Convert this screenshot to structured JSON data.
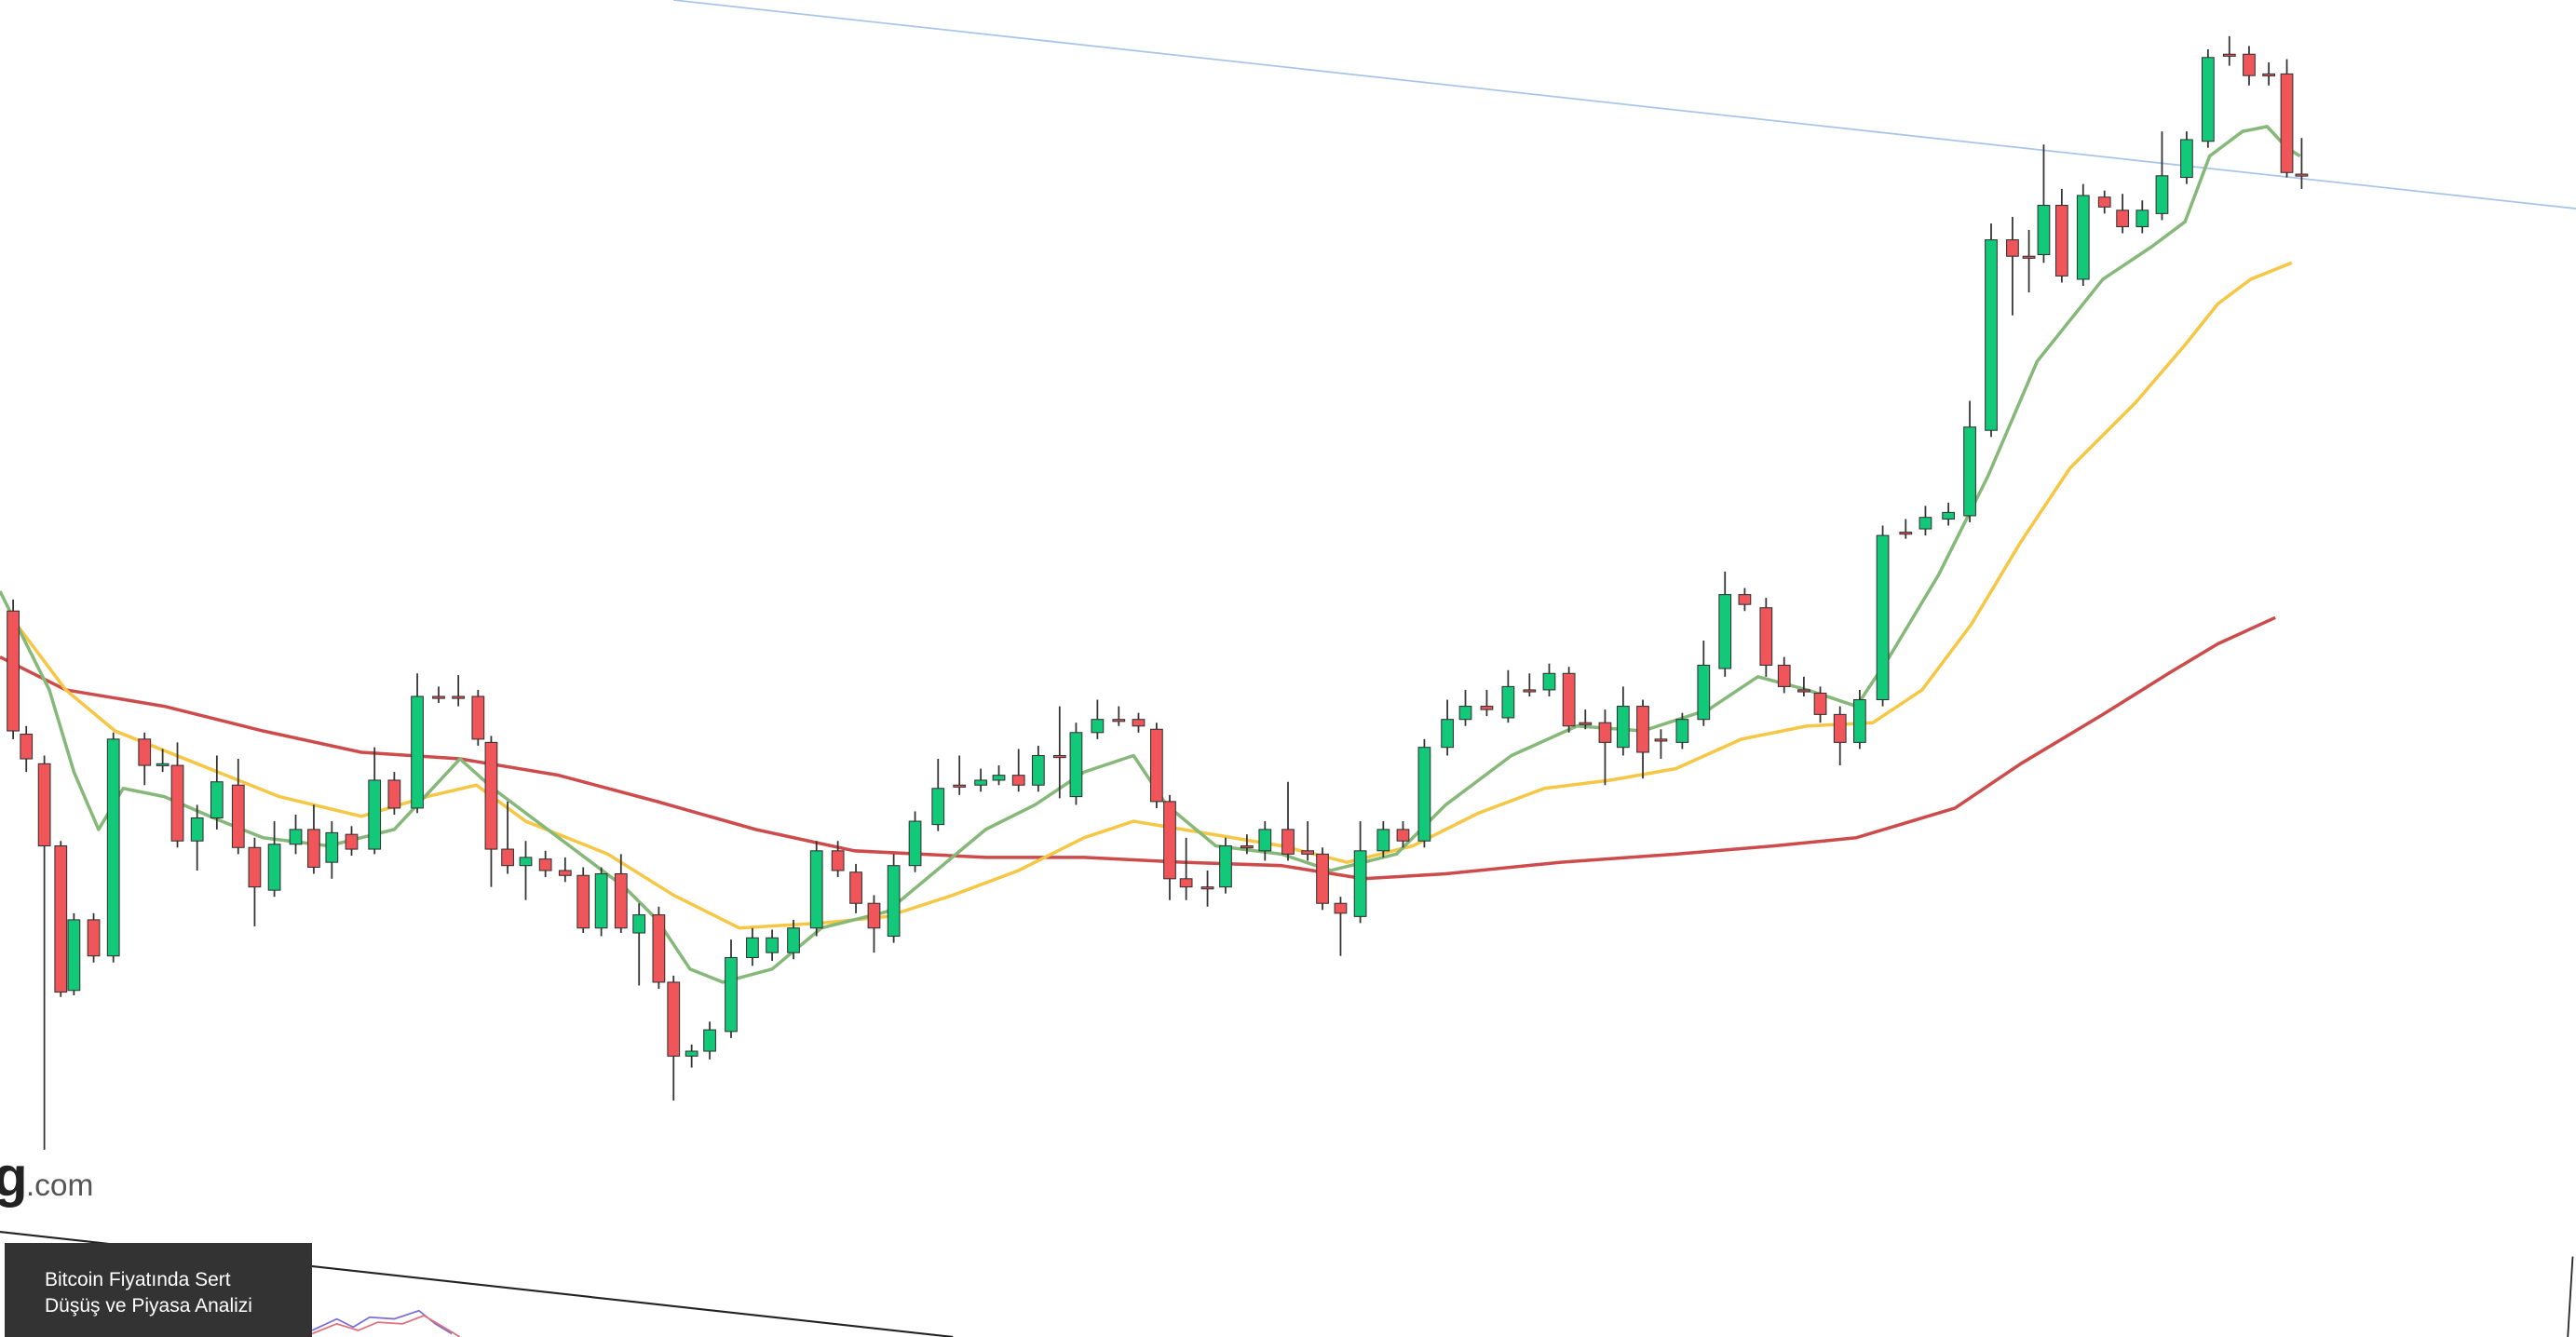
{
  "chart_data": {
    "type": "candlestick",
    "xlim": [
      0,
      1568
    ],
    "ylim": [
      0,
      814
    ],
    "up_color": "#12c97a",
    "down_color": "#f0555a",
    "x": [
      8,
      16,
      27,
      37,
      45,
      57,
      69,
      88,
      99,
      108,
      120,
      132,
      145,
      155,
      167,
      180,
      191,
      202,
      214,
      228,
      240,
      254,
      267,
      279,
      291,
      299,
      309,
      320,
      332,
      344,
      355,
      366,
      378,
      389,
      401,
      410,
      421,
      432,
      445,
      458,
      470,
      483,
      497,
      510,
      521,
      532,
      544,
      557,
      571,
      584,
      597,
      608,
      620,
      632,
      645,
      655,
      668,
      681,
      693,
      704,
      712,
      722,
      735,
      746,
      759,
      770,
      784,
      796,
      805,
      816,
      828,
      842,
      854,
      867,
      881,
      892,
      905,
      918,
      931,
      943,
      955,
      965,
      977,
      988,
      1000,
      1011,
      1024,
      1037,
      1050,
      1062,
      1075,
      1086,
      1098,
      1108,
      1120,
      1132,
      1146,
      1160,
      1172,
      1186,
      1199,
      1212,
      1225,
      1235,
      1244,
      1255,
      1268,
      1281,
      1292,
      1304,
      1316,
      1331,
      1344,
      1357,
      1369,
      1381,
      1392,
      1401
    ],
    "open": [
      442,
      367,
      349,
      299,
      211,
      254,
      232,
      364,
      348,
      348,
      302,
      316,
      336,
      298,
      272,
      300,
      309,
      289,
      306,
      297,
      339,
      322,
      390,
      390,
      390,
      362,
      297,
      287,
      291,
      284,
      281,
      249,
      282,
      246,
      257,
      216,
      171,
      174,
      186,
      231,
      234,
      234,
      249,
      296,
      283,
      264,
      244,
      287,
      312,
      336,
      336,
      339,
      342,
      336,
      354,
      329,
      368,
      376,
      376,
      370,
      326,
      279,
      274,
      274,
      299,
      296,
      309,
      296,
      294,
      264,
      256,
      296,
      309,
      302,
      359,
      376,
      384,
      377,
      394,
      394,
      404,
      374,
      374,
      359,
      384,
      364,
      362,
      376,
      407,
      452,
      444,
      409,
      394,
      392,
      379,
      362,
      388,
      490,
      492,
      498,
      500,
      552,
      668,
      658,
      659,
      689,
      644,
      694,
      686,
      676,
      684,
      706,
      728,
      781,
      781,
      769,
      769,
      708
    ],
    "high": [
      449,
      372,
      354,
      302,
      258,
      258,
      368,
      368,
      358,
      362,
      324,
      354,
      352,
      304,
      314,
      318,
      324,
      314,
      311,
      359,
      344,
      404,
      396,
      403,
      394,
      366,
      326,
      302,
      296,
      292,
      286,
      286,
      294,
      264,
      262,
      220,
      178,
      192,
      242,
      249,
      248,
      254,
      302,
      302,
      288,
      269,
      294,
      320,
      352,
      354,
      346,
      348,
      358,
      360,
      384,
      374,
      388,
      384,
      380,
      374,
      330,
      304,
      284,
      304,
      306,
      314,
      338,
      314,
      298,
      268,
      314,
      314,
      314,
      364,
      388,
      394,
      394,
      406,
      404,
      410,
      408,
      382,
      382,
      396,
      388,
      370,
      380,
      424,
      466,
      456,
      450,
      414,
      402,
      396,
      384,
      394,
      494,
      498,
      506,
      508,
      570,
      678,
      682,
      674,
      726,
      699,
      702,
      698,
      696,
      692,
      734,
      734,
      784,
      792,
      786,
      776,
      778,
      730
    ],
    "low": [
      364,
      344,
      114,
      207,
      208,
      228,
      228,
      336,
      344,
      298,
      284,
      309,
      294,
      250,
      268,
      294,
      282,
      279,
      293,
      294,
      318,
      319,
      386,
      384,
      360,
      274,
      282,
      266,
      280,
      277,
      246,
      244,
      246,
      214,
      212,
      144,
      164,
      169,
      182,
      226,
      229,
      230,
      244,
      280,
      258,
      234,
      240,
      283,
      308,
      330,
      332,
      336,
      332,
      332,
      328,
      324,
      364,
      372,
      368,
      322,
      266,
      266,
      262,
      270,
      294,
      290,
      290,
      290,
      260,
      232,
      252,
      292,
      298,
      298,
      354,
      372,
      378,
      374,
      390,
      390,
      368,
      370,
      336,
      354,
      340,
      352,
      358,
      372,
      402,
      442,
      402,
      392,
      390,
      374,
      348,
      358,
      384,
      486,
      488,
      494,
      496,
      548,
      622,
      636,
      654,
      642,
      640,
      684,
      672,
      672,
      680,
      702,
      724,
      774,
      762,
      762,
      706,
      699
    ],
    "close": [
      369,
      352,
      299,
      210,
      254,
      232,
      364,
      348,
      349,
      302,
      316,
      338,
      298,
      274,
      300,
      309,
      286,
      307,
      297,
      339,
      322,
      390,
      389,
      389,
      364,
      297,
      287,
      292,
      284,
      281,
      249,
      282,
      249,
      257,
      216,
      171,
      174,
      187,
      231,
      243,
      243,
      249,
      296,
      284,
      264,
      249,
      287,
      314,
      334,
      335,
      339,
      342,
      336,
      354,
      353,
      368,
      376,
      375,
      372,
      326,
      279,
      274,
      273,
      299,
      298,
      309,
      294,
      294,
      264,
      258,
      296,
      309,
      302,
      359,
      376,
      384,
      382,
      396,
      393,
      404,
      372,
      373,
      362,
      384,
      356,
      363,
      376,
      409,
      452,
      446,
      409,
      396,
      393,
      379,
      362,
      388,
      488,
      489,
      499,
      502,
      554,
      668,
      658,
      657,
      689,
      646,
      695,
      688,
      676,
      686,
      707,
      729,
      779,
      780,
      768,
      768,
      709,
      707
    ],
    "lines": [
      {
        "color": "#86b87a",
        "x": [
          0,
          10,
          30,
          45,
          60,
          75,
          100,
          130,
          160,
          200,
          240,
          280,
          300,
          340,
          380,
          400,
          420,
          440,
          470,
          500,
          540,
          570,
          600,
          630,
          660,
          690,
          710,
          740,
          780,
          810,
          850,
          880,
          920,
          960,
          1000,
          1040,
          1070,
          1100,
          1130,
          1150,
          1180,
          1210,
          1240,
          1280,
          1310,
          1330,
          1345,
          1365,
          1380,
          1392,
          1400
        ],
        "values": [
          454,
          434,
          394,
          344,
          309,
          334,
          329,
          316,
          304,
          299,
          309,
          352,
          334,
          304,
          274,
          254,
          224,
          216,
          224,
          249,
          259,
          284,
          309,
          324,
          344,
          354,
          324,
          299,
          294,
          284,
          294,
          324,
          354,
          372,
          369,
          382,
          402,
          394,
          384,
          414,
          464,
          524,
          594,
          644,
          664,
          679,
          719,
          734,
          737,
          724,
          719
        ]
      },
      {
        "color": "#f6c744",
        "x": [
          10,
          40,
          70,
          120,
          170,
          220,
          260,
          290,
          320,
          370,
          410,
          450,
          500,
          540,
          580,
          620,
          660,
          690,
          720,
          780,
          820,
          860,
          900,
          940,
          980,
          1020,
          1060,
          1100,
          1140,
          1170,
          1200,
          1230,
          1260,
          1300,
          1330,
          1350,
          1370,
          1395
        ],
        "values": [
          434,
          394,
          369,
          349,
          329,
          317,
          329,
          336,
          314,
          294,
          269,
          249,
          252,
          256,
          269,
          284,
          304,
          314,
          309,
          299,
          289,
          299,
          319,
          334,
          339,
          346,
          364,
          372,
          374,
          394,
          434,
          484,
          529,
          569,
          604,
          629,
          644,
          654
        ]
      },
      {
        "color": "#cd4b4b",
        "x": [
          0,
          40,
          100,
          160,
          220,
          280,
          340,
          400,
          460,
          520,
          600,
          660,
          720,
          780,
          830,
          880,
          950,
          1020,
          1080,
          1130,
          1190,
          1230,
          1280,
          1320,
          1350,
          1385
        ],
        "values": [
          414,
          394,
          384,
          369,
          356,
          352,
          342,
          326,
          309,
          296,
          292,
          292,
          289,
          287,
          279,
          282,
          289,
          294,
          299,
          304,
          322,
          349,
          379,
          404,
          422,
          438
        ]
      }
    ],
    "watermark": [
      "g",
      ".com"
    ],
    "caption": "Bitcoin Fiyatında Sert Düşüş ve Piyasa Analizi"
  }
}
